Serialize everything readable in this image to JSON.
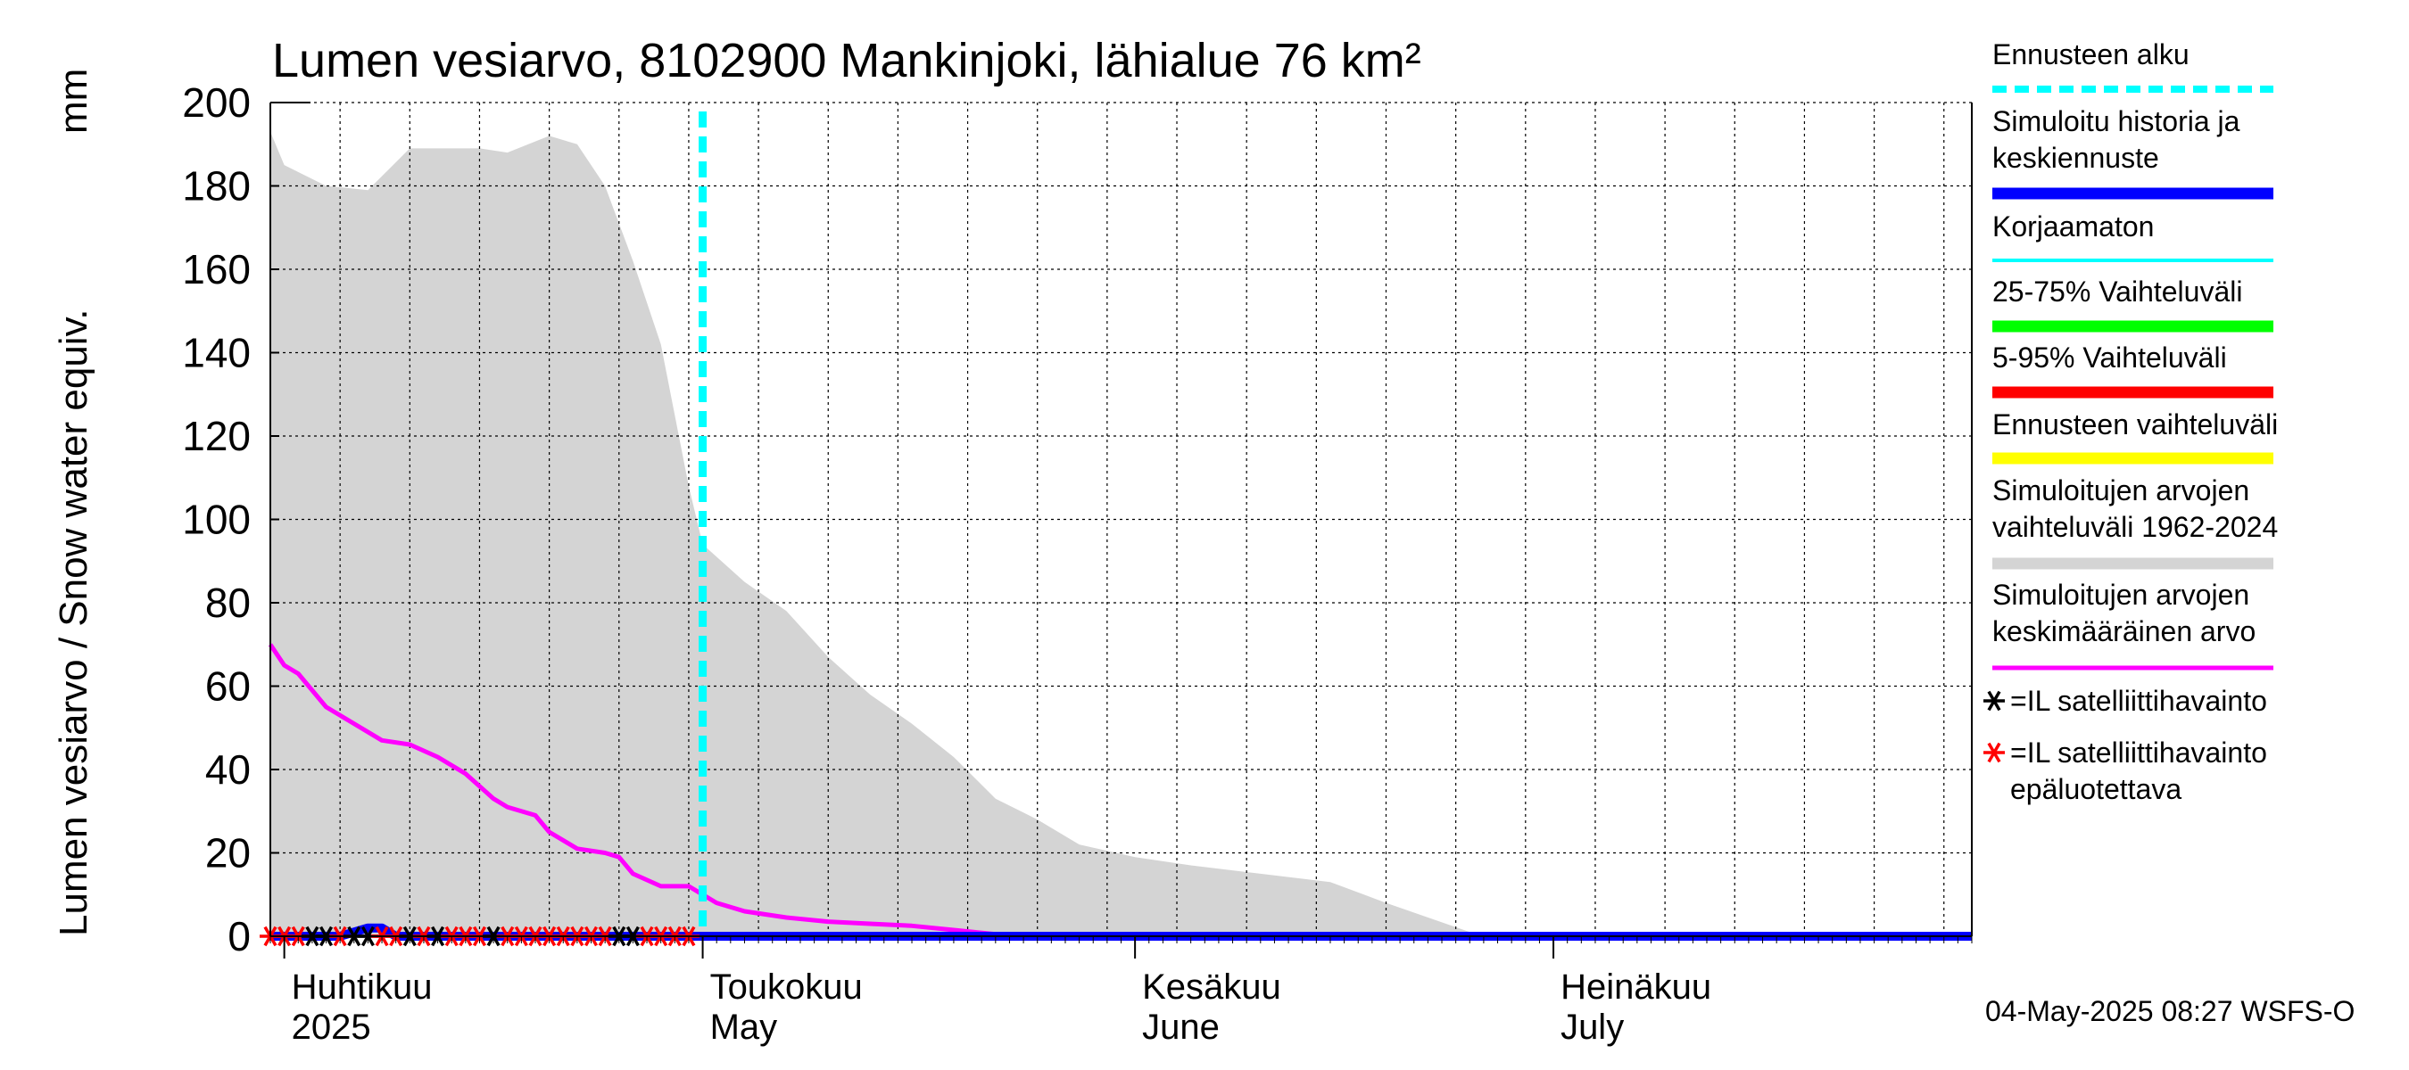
{
  "chart_data": {
    "type": "line",
    "title": "Lumen vesiarvo, 8102900 Mankinjoki, lähialue 76 km²",
    "ylabel": "Lumen vesiarvo / Snow water equiv.",
    "yunit": "mm",
    "ylim": [
      0,
      200
    ],
    "yticks": [
      0,
      20,
      40,
      60,
      80,
      100,
      120,
      140,
      160,
      180,
      200
    ],
    "xlim": [
      "2025-03-31",
      "2025-07-31"
    ],
    "grid": true,
    "legend_position": "right",
    "forecast_start": "2025-05-01",
    "month_labels": [
      {
        "date": "2025-04-01",
        "fi": "Huhtikuu",
        "en": "2025"
      },
      {
        "date": "2025-05-01",
        "fi": "Toukokuu",
        "en": "May"
      },
      {
        "date": "2025-06-01",
        "fi": "Kesäkuu",
        "en": "June"
      },
      {
        "date": "2025-07-01",
        "fi": "Heinäkuu",
        "en": "July"
      }
    ],
    "series": [
      {
        "name": "Simuloitujen arvojen vaihteluväli 1962-2024",
        "kind": "band",
        "color": "#d4d4d4",
        "x": [
          "2025-03-31",
          "2025-04-01",
          "2025-04-04",
          "2025-04-07",
          "2025-04-10",
          "2025-04-12",
          "2025-04-15",
          "2025-04-17",
          "2025-04-20",
          "2025-04-22",
          "2025-04-24",
          "2025-04-26",
          "2025-04-28",
          "2025-04-30",
          "2025-05-01",
          "2025-05-04",
          "2025-05-07",
          "2025-05-10",
          "2025-05-13",
          "2025-05-16",
          "2025-05-19",
          "2025-05-22",
          "2025-05-25",
          "2025-05-28",
          "2025-06-01",
          "2025-06-05",
          "2025-06-10",
          "2025-06-15",
          "2025-06-19",
          "2025-06-25",
          "2025-06-28",
          "2025-07-31"
        ],
        "upper": [
          193,
          185,
          180,
          179,
          189,
          189,
          189,
          188,
          192,
          190,
          180,
          162,
          142,
          108,
          94,
          85,
          78,
          67,
          58,
          51,
          43,
          33,
          28,
          22,
          19,
          17,
          15,
          13,
          8,
          1,
          0,
          0
        ],
        "lower": [
          0,
          0,
          0,
          0,
          0,
          0,
          0,
          0,
          0,
          0,
          0,
          0,
          0,
          0,
          0,
          0,
          0,
          0,
          0,
          0,
          0,
          0,
          0,
          0,
          0,
          0,
          0,
          0,
          0,
          0,
          0,
          0
        ]
      },
      {
        "name": "Simuloitujen arvojen keskimääräinen arvo",
        "kind": "line",
        "color": "#ff00ff",
        "x": [
          "2025-03-31",
          "2025-04-01",
          "2025-04-02",
          "2025-04-04",
          "2025-04-06",
          "2025-04-08",
          "2025-04-10",
          "2025-04-12",
          "2025-04-14",
          "2025-04-16",
          "2025-04-17",
          "2025-04-19",
          "2025-04-20",
          "2025-04-22",
          "2025-04-24",
          "2025-04-25",
          "2025-04-26",
          "2025-04-28",
          "2025-04-30",
          "2025-05-01",
          "2025-05-02",
          "2025-05-04",
          "2025-05-07",
          "2025-05-10",
          "2025-05-13",
          "2025-05-16",
          "2025-05-19",
          "2025-05-22",
          "2025-06-01",
          "2025-07-31"
        ],
        "values": [
          70,
          65,
          63,
          55,
          51,
          47,
          46,
          43,
          39,
          33,
          31,
          29,
          25,
          21,
          20,
          19,
          15,
          12,
          12,
          10,
          8,
          6,
          4.5,
          3.5,
          3,
          2.5,
          1.5,
          0.5,
          0,
          0
        ]
      },
      {
        "name": "Simuloitu historia ja keskiennuste",
        "kind": "line",
        "color": "#0000ff",
        "x": [
          "2025-03-31",
          "2025-04-05",
          "2025-04-06",
          "2025-04-07",
          "2025-04-08",
          "2025-04-09",
          "2025-05-01",
          "2025-07-31"
        ],
        "values": [
          0,
          0,
          1,
          2,
          2,
          0,
          0,
          0
        ]
      }
    ],
    "legend": [
      {
        "label": "Ennusteen alku",
        "style": "dashed",
        "color": "#00ffff"
      },
      {
        "label": "Simuloitu historia ja keskiennuste",
        "style": "thick",
        "color": "#0000ff"
      },
      {
        "label": "Korjaamaton",
        "style": "thin",
        "color": "#00ffff"
      },
      {
        "label": "25-75% Vaihteluväli",
        "style": "thick",
        "color": "#00ff00"
      },
      {
        "label": "5-95% Vaihteluväli",
        "style": "thick",
        "color": "#ff0000"
      },
      {
        "label": "Ennusteen vaihteluväli",
        "style": "thick",
        "color": "#ffff00"
      },
      {
        "label": "Simuloitujen arvojen vaihteluväli 1962-2024",
        "style": "thick",
        "color": "#d4d4d4"
      },
      {
        "label": "Simuloitujen arvojen keskimääräinen arvo",
        "style": "medium",
        "color": "#ff00ff"
      },
      {
        "label": "=IL satelliittihavainto",
        "style": "star",
        "color": "#000000"
      },
      {
        "label": "=IL satelliittihavainto epäluotettava",
        "style": "star",
        "color": "#ff0000"
      }
    ],
    "satellite_observations": [
      {
        "date": "2025-03-31",
        "value": 0,
        "reliable": false
      },
      {
        "date": "2025-04-01",
        "value": 0,
        "reliable": false
      },
      {
        "date": "2025-04-02",
        "value": 0,
        "reliable": false
      },
      {
        "date": "2025-04-03",
        "value": 0,
        "reliable": true
      },
      {
        "date": "2025-04-04",
        "value": 0,
        "reliable": true
      },
      {
        "date": "2025-04-05",
        "value": 0,
        "reliable": false
      },
      {
        "date": "2025-04-06",
        "value": 0,
        "reliable": true
      },
      {
        "date": "2025-04-07",
        "value": 0,
        "reliable": true
      },
      {
        "date": "2025-04-08",
        "value": 0,
        "reliable": false
      },
      {
        "date": "2025-04-09",
        "value": 0,
        "reliable": false
      },
      {
        "date": "2025-04-10",
        "value": 0,
        "reliable": true
      },
      {
        "date": "2025-04-11",
        "value": 0,
        "reliable": false
      },
      {
        "date": "2025-04-12",
        "value": 0,
        "reliable": true
      },
      {
        "date": "2025-04-13",
        "value": 0,
        "reliable": false
      },
      {
        "date": "2025-04-14",
        "value": 0,
        "reliable": false
      },
      {
        "date": "2025-04-15",
        "value": 0,
        "reliable": false
      },
      {
        "date": "2025-04-16",
        "value": 0,
        "reliable": true
      },
      {
        "date": "2025-04-17",
        "value": 0,
        "reliable": false
      },
      {
        "date": "2025-04-18",
        "value": 0,
        "reliable": false
      },
      {
        "date": "2025-04-19",
        "value": 0,
        "reliable": false
      },
      {
        "date": "2025-04-20",
        "value": 0,
        "reliable": false
      },
      {
        "date": "2025-04-21",
        "value": 0,
        "reliable": false
      },
      {
        "date": "2025-04-22",
        "value": 0,
        "reliable": false
      },
      {
        "date": "2025-04-23",
        "value": 0,
        "reliable": false
      },
      {
        "date": "2025-04-24",
        "value": 0,
        "reliable": false
      },
      {
        "date": "2025-04-25",
        "value": 0,
        "reliable": true
      },
      {
        "date": "2025-04-26",
        "value": 0,
        "reliable": true
      },
      {
        "date": "2025-04-27",
        "value": 0,
        "reliable": false
      },
      {
        "date": "2025-04-28",
        "value": 0,
        "reliable": false
      },
      {
        "date": "2025-04-29",
        "value": 0,
        "reliable": false
      },
      {
        "date": "2025-04-30",
        "value": 0,
        "reliable": false
      }
    ],
    "timestamp": "04-May-2025 08:27 WSFS-O"
  }
}
